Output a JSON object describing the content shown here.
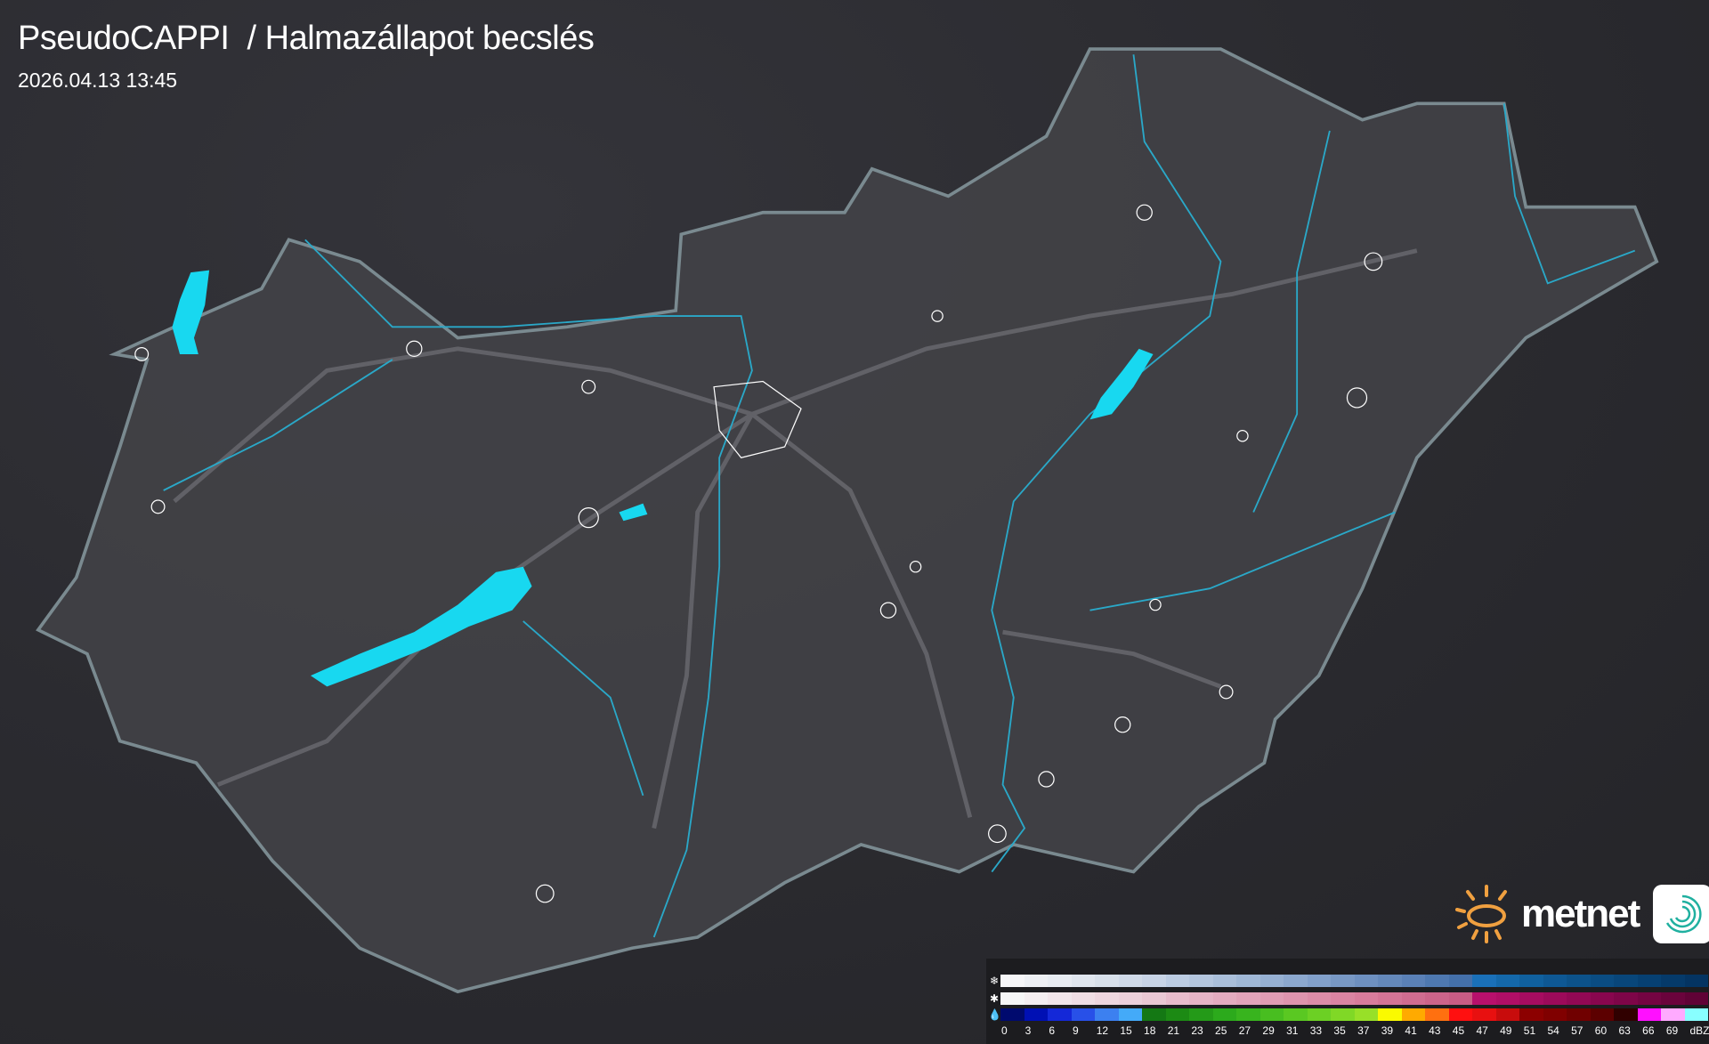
{
  "header": {
    "title": "PseudoCAPPI  / Halmazállapot becslés",
    "timestamp": "2026.04.13 13:45"
  },
  "branding": {
    "logo_text": "metnet",
    "sun_color": "#f0a040",
    "app_icon": "swirl-icon"
  },
  "map": {
    "region": "Hungary",
    "border_color": "#7a8a90",
    "river_color": "#2aa8c8",
    "lake_color": "#18d8f0",
    "settlement_outline_color": "#ffffff"
  },
  "legend": {
    "unit": "dBZ",
    "rows": [
      {
        "type": "snow",
        "icon": "snowflake-icon",
        "colors": [
          "#f6f6f8",
          "#eef0f4",
          "#e8ecf2",
          "#e0e6ee",
          "#d8e0ea",
          "#d0dae8",
          "#c8d4e6",
          "#bccce2",
          "#b4c6de",
          "#aabfda",
          "#a0b8d6",
          "#96b0d2",
          "#8ca8ce",
          "#82a0ca",
          "#7898c4",
          "#6e90c0",
          "#6488ba",
          "#5a80b6",
          "#4e78b0",
          "#4470aa",
          "#1a70b8",
          "#1468aa",
          "#10609e",
          "#0e5894",
          "#0c528a",
          "#0a4c82",
          "#08467a",
          "#064072",
          "#053a6a",
          "#043462"
        ]
      },
      {
        "type": "mixed",
        "icon": "sleet-icon",
        "colors": [
          "#f6f6f6",
          "#f4eef0",
          "#f2e6ea",
          "#f0dee4",
          "#eed6de",
          "#ecd0da",
          "#eac8d4",
          "#e8bccc",
          "#e6b4c6",
          "#e4acc0",
          "#e2a4ba",
          "#e09cb4",
          "#de94ae",
          "#dc8ca8",
          "#da84a2",
          "#d87c9c",
          "#d47496",
          "#d06c90",
          "#cc648a",
          "#c85c84",
          "#b8106c",
          "#b00e66",
          "#a60c60",
          "#9c0a5a",
          "#920854",
          "#88064e",
          "#7e0548",
          "#740442",
          "#6a033c",
          "#600236"
        ]
      },
      {
        "type": "rain",
        "icon": "raindrop-icon",
        "colors": [
          "#000a6e",
          "#0010b4",
          "#1428d8",
          "#2850e8",
          "#3c80f0",
          "#44aaf8",
          "#147814",
          "#1c8a14",
          "#249a18",
          "#2caa1c",
          "#38b41e",
          "#48be20",
          "#5ac822",
          "#6cd024",
          "#80d826",
          "#98e028",
          "#fafa00",
          "#ffaa00",
          "#ff7010",
          "#ff1010",
          "#e81010",
          "#c80c0c",
          "#8c0000",
          "#800000",
          "#700000",
          "#5c0000",
          "#300000",
          "#ff10ff",
          "#ffaaff",
          "#88ffff"
        ]
      }
    ],
    "tick_labels": [
      "0",
      "3",
      "6",
      "9",
      "12",
      "15",
      "18",
      "21",
      "23",
      "25",
      "27",
      "29",
      "31",
      "33",
      "35",
      "37",
      "39",
      "41",
      "43",
      "45",
      "47",
      "49",
      "51",
      "54",
      "57",
      "60",
      "63",
      "66",
      "69",
      "dBZ"
    ]
  }
}
